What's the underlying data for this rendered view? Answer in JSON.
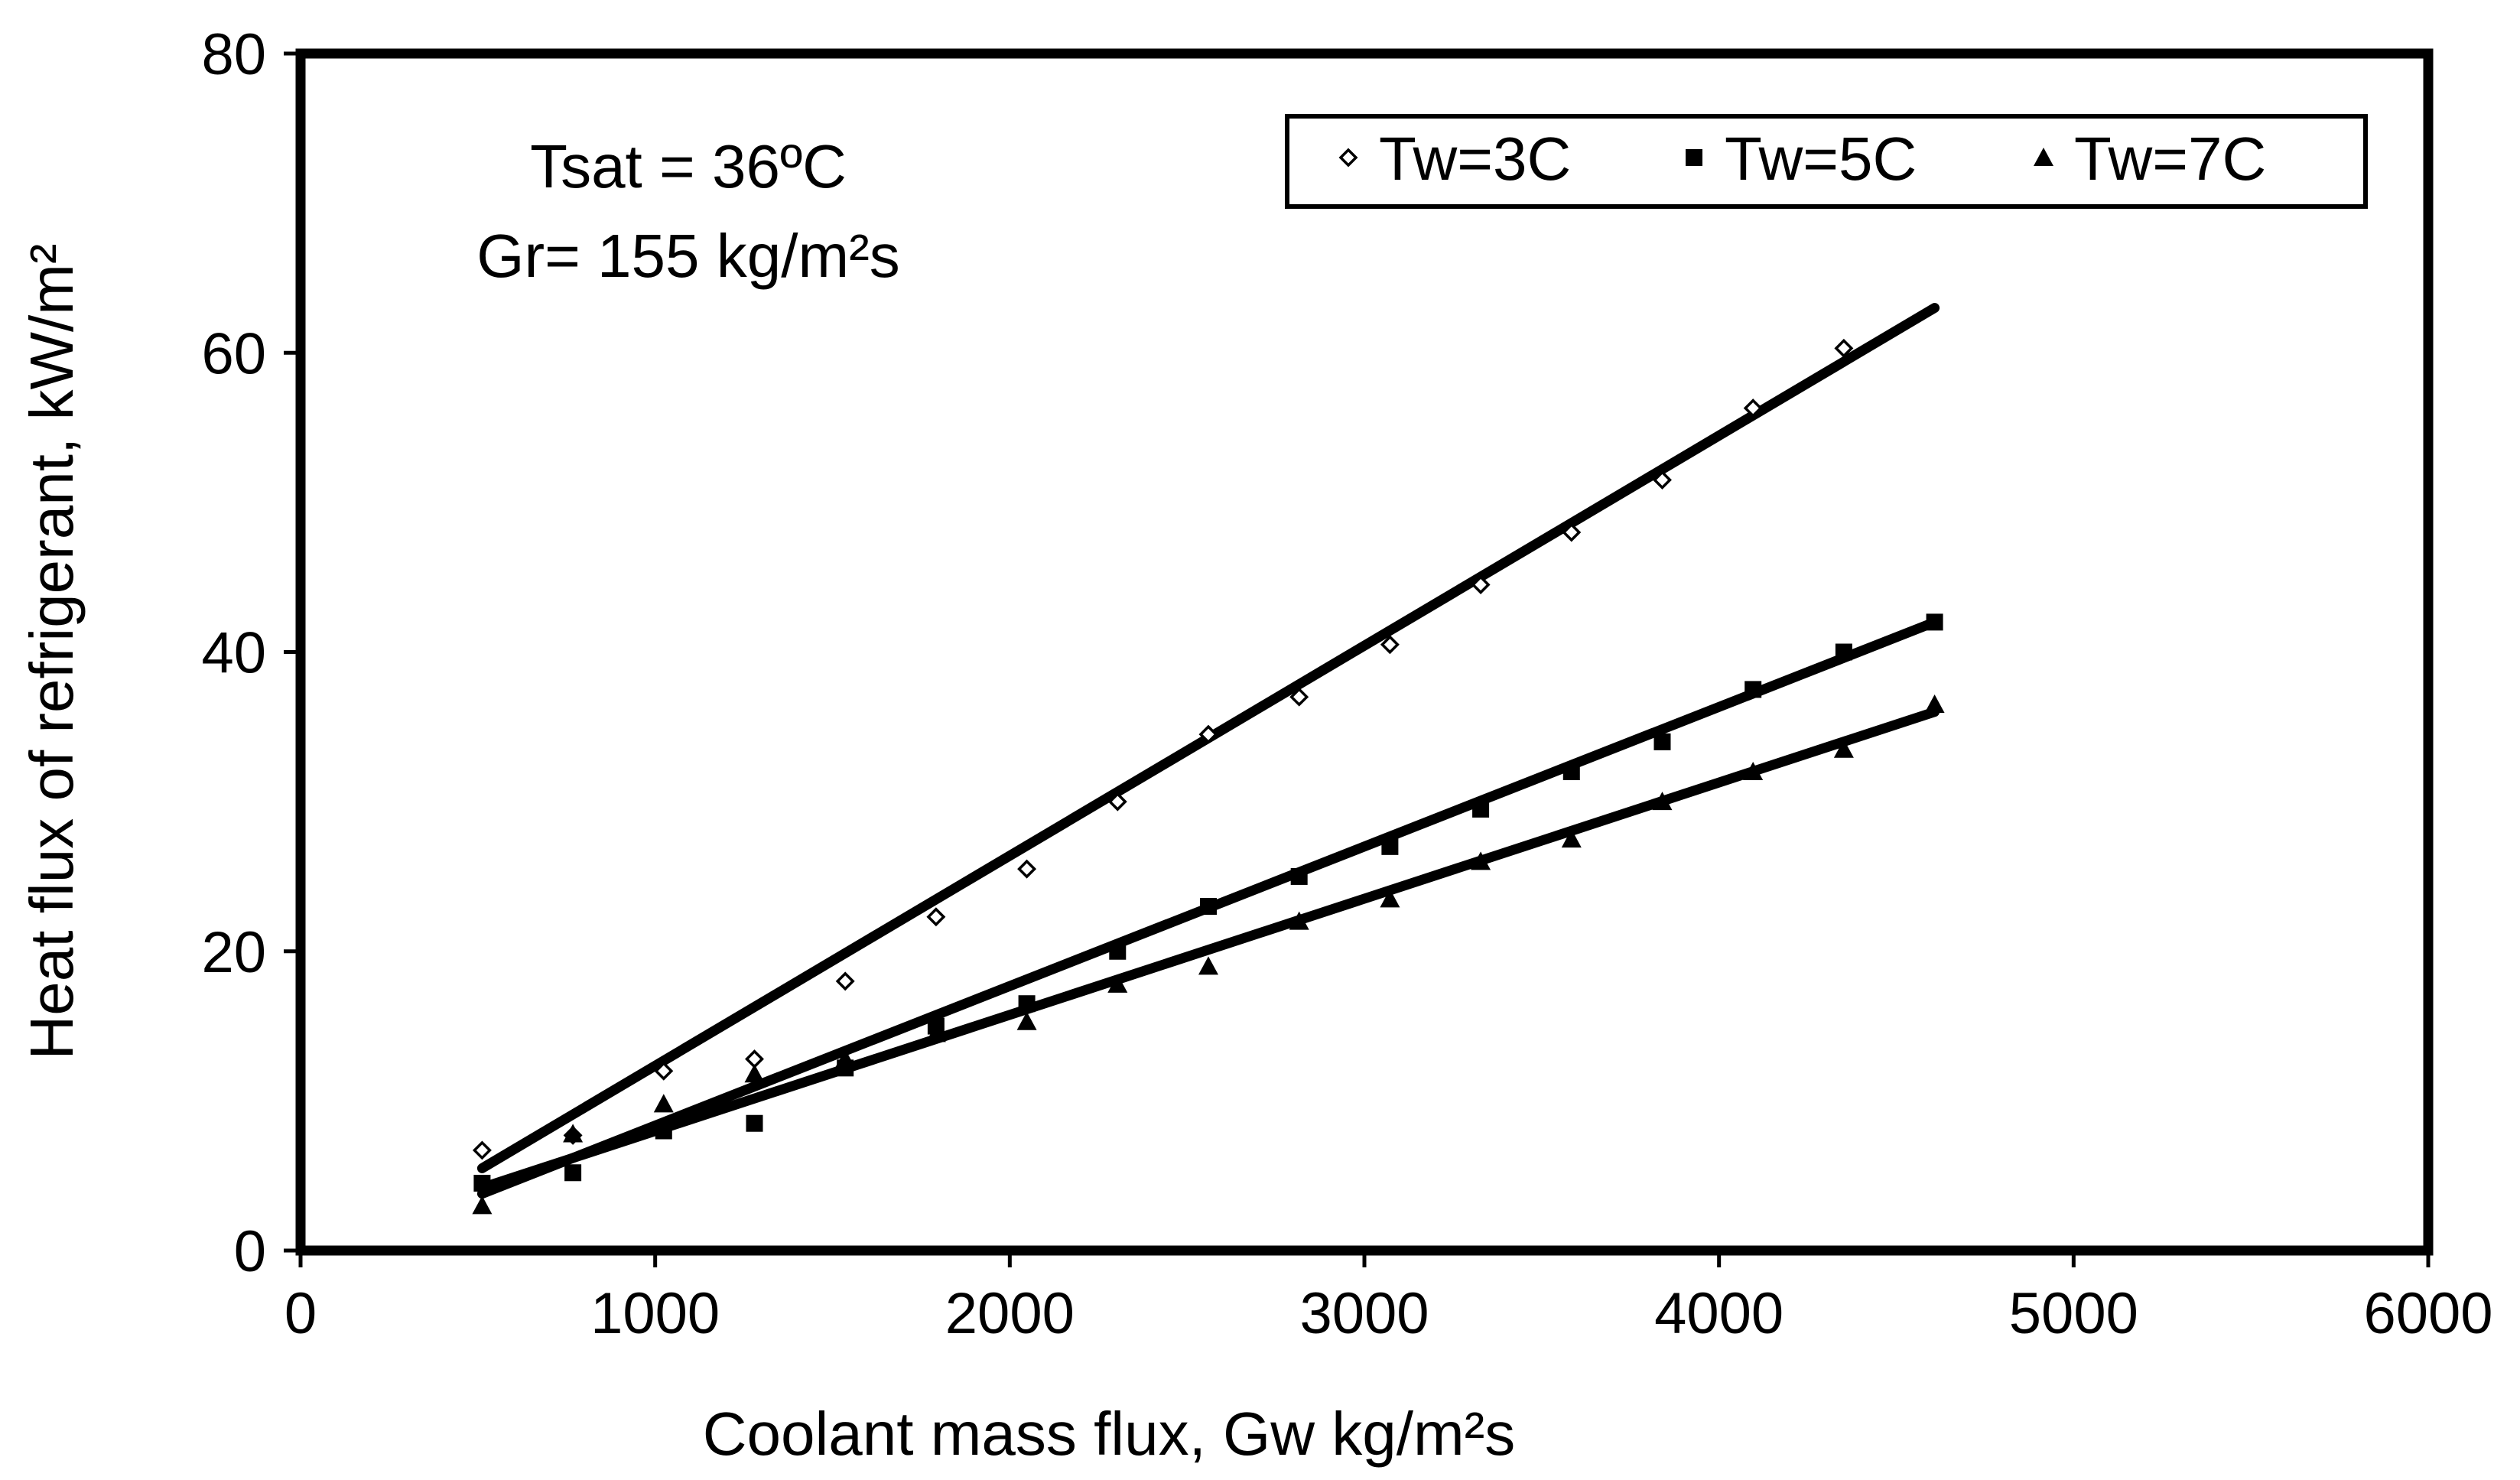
{
  "chart_data": {
    "type": "scatter",
    "title": "",
    "xlabel": "Coolant mass flux, Gw kg/m²s",
    "ylabel": "Heat flux of refrigerant, kW/m²",
    "xlim": [
      0,
      6000
    ],
    "ylim": [
      0,
      80
    ],
    "x_ticks": [
      0,
      1000,
      2000,
      3000,
      4000,
      5000,
      6000
    ],
    "y_ticks": [
      0,
      20,
      40,
      60,
      80
    ],
    "x_tick_labels": [
      "0",
      "1000",
      "2000",
      "3000",
      "4000",
      "5000",
      "6000"
    ],
    "y_tick_labels": [
      "0",
      "20",
      "40",
      "60",
      "80"
    ],
    "grid": false,
    "legend_position": "top-right",
    "annotations": [
      "Tsat = 36ºC",
      "Gr= 155 kg/m²s"
    ],
    "series": [
      {
        "name": "Tw=3C",
        "marker": "open-diamond",
        "x": [
          512,
          768,
          1024,
          1280,
          1536,
          1792,
          2048,
          2304,
          2560,
          2816,
          3072,
          3328,
          3584,
          3840,
          4096,
          4352
        ],
        "y": [
          6.7,
          7.7,
          12.0,
          12.8,
          18.0,
          22.3,
          25.5,
          30.0,
          34.5,
          37.0,
          40.5,
          44.5,
          48.0,
          51.5,
          56.3,
          60.3
        ],
        "fit": {
          "x": [
            512,
            4608
          ],
          "y": [
            5.5,
            63.0
          ]
        }
      },
      {
        "name": "Tw=5C",
        "marker": "filled-square",
        "x": [
          512,
          768,
          1024,
          1280,
          1536,
          1792,
          2048,
          2304,
          2560,
          2816,
          3072,
          3328,
          3584,
          3840,
          4096,
          4352,
          4608
        ],
        "y": [
          4.5,
          5.2,
          8.0,
          8.5,
          12.2,
          15.0,
          16.5,
          20.0,
          23.0,
          25.0,
          27.0,
          29.5,
          32.0,
          34.0,
          37.5,
          40.0,
          42.0
        ],
        "fit": {
          "x": [
            512,
            4608
          ],
          "y": [
            3.8,
            42.0
          ]
        }
      },
      {
        "name": "Tw=7C",
        "marker": "filled-triangle",
        "x": [
          512,
          768,
          1024,
          1280,
          1536,
          1792,
          2048,
          2304,
          2560,
          2816,
          3072,
          3328,
          3584,
          3840,
          4096,
          4352,
          4608
        ],
        "y": [
          3.0,
          7.8,
          9.8,
          11.8,
          12.8,
          14.5,
          15.3,
          17.8,
          19.0,
          22.0,
          23.5,
          26.0,
          27.5,
          30.0,
          32.0,
          33.5,
          36.5
        ],
        "fit": {
          "x": [
            512,
            4608
          ],
          "y": [
            4.2,
            36.0
          ]
        }
      }
    ]
  }
}
